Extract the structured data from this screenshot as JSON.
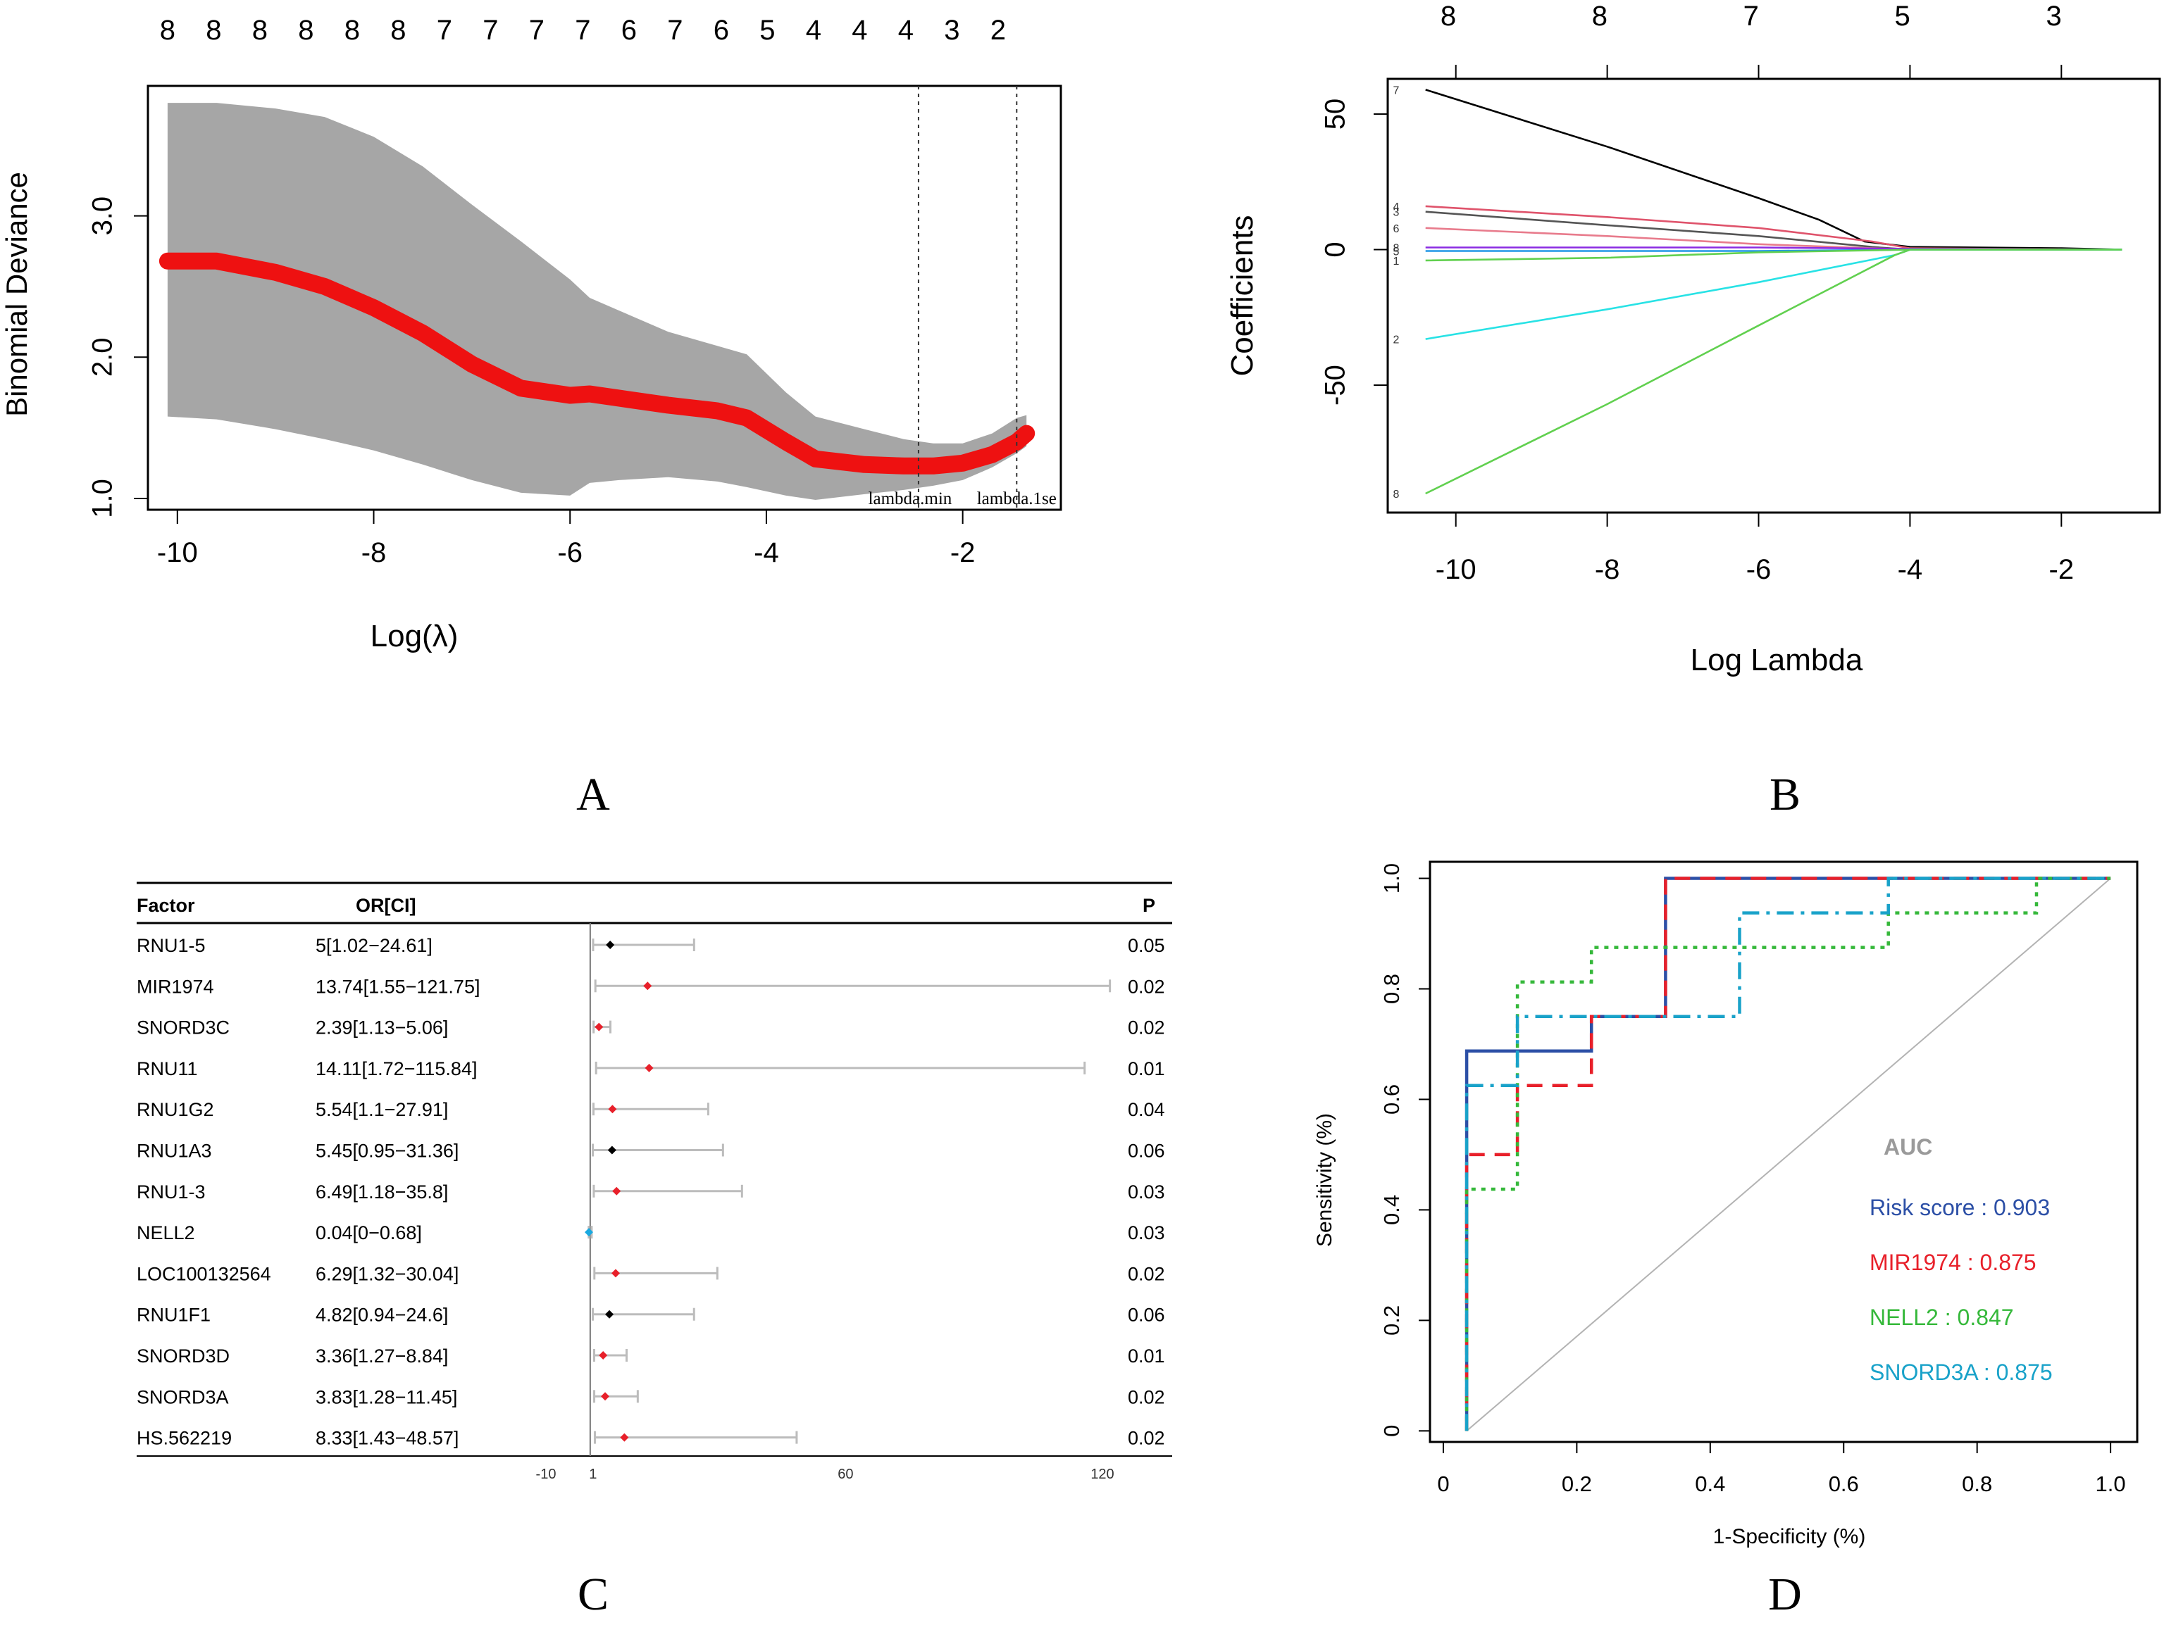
{
  "panel_letters": [
    "A",
    "B",
    "C",
    "D"
  ],
  "chart_data": [
    {
      "panel": "A",
      "type": "line",
      "xlabel": "Log(λ)",
      "ylabel": "Binomial Deviance",
      "xlim": [
        -10.3,
        -1.0
      ],
      "ylim": [
        0.92,
        3.92
      ],
      "xticks": [
        -10,
        -8,
        -6,
        -4,
        -2
      ],
      "yticks": [
        1.0,
        2.0,
        3.0
      ],
      "ytick_labels": [
        "1.0",
        "2.0",
        "3.0"
      ],
      "top_axis_labels": [
        "8",
        "8",
        "8",
        "8",
        "8",
        "8",
        "7",
        "7",
        "7",
        "7",
        "6",
        "7",
        "6",
        "5",
        "4",
        "4",
        "4",
        "3",
        "2"
      ],
      "top_axis_x": [
        -10.1,
        -9.63,
        -9.16,
        -8.69,
        -8.22,
        -7.75,
        -7.28,
        -6.81,
        -6.34,
        -5.87,
        -5.4,
        -4.93,
        -4.46,
        -3.99,
        -3.52,
        -3.05,
        -2.58,
        -2.11,
        -1.64
      ],
      "vlines": [
        {
          "x": -2.45,
          "label": "lambda.min"
        },
        {
          "x": -1.45,
          "label": "lambda.1se"
        }
      ],
      "series": [
        {
          "x": [
            -10.1,
            -9.6,
            -9.0,
            -8.5,
            -8.0,
            -7.5,
            -7.0,
            -6.5,
            -6.0,
            -5.8,
            -5.5,
            -5.0,
            -4.5,
            -4.2,
            -3.8,
            -3.5,
            -3.0,
            -2.6,
            -2.3,
            -2.0,
            -1.7,
            -1.45,
            -1.35
          ],
          "y": [
            2.68,
            2.68,
            2.6,
            2.5,
            2.35,
            2.17,
            1.95,
            1.78,
            1.73,
            1.74,
            1.71,
            1.66,
            1.62,
            1.57,
            1.4,
            1.28,
            1.24,
            1.23,
            1.23,
            1.25,
            1.31,
            1.4,
            1.46
          ],
          "lower": [
            1.58,
            1.56,
            1.49,
            1.42,
            1.34,
            1.24,
            1.13,
            1.04,
            1.02,
            1.11,
            1.13,
            1.15,
            1.12,
            1.08,
            1.02,
            0.99,
            1.03,
            1.06,
            1.09,
            1.13,
            1.22,
            1.32,
            1.37
          ],
          "upper": [
            3.8,
            3.8,
            3.76,
            3.7,
            3.56,
            3.35,
            3.08,
            2.82,
            2.55,
            2.42,
            2.33,
            2.18,
            2.08,
            2.02,
            1.75,
            1.58,
            1.49,
            1.42,
            1.39,
            1.39,
            1.46,
            1.57,
            1.59
          ]
        }
      ]
    },
    {
      "panel": "B",
      "type": "line",
      "xlabel": "Log Lambda",
      "ylabel": "Coefficients",
      "xlim": [
        -10.9,
        -0.7
      ],
      "ylim": [
        -97,
        63
      ],
      "xticks": [
        -10,
        -8,
        -6,
        -4,
        -2
      ],
      "yticks": [
        -50,
        0,
        50
      ],
      "top_axis_labels": [
        "8",
        "8",
        "7",
        "5",
        "3"
      ],
      "top_axis_x": [
        -10.1,
        -8.1,
        -6.1,
        -4.1,
        -2.1
      ],
      "series": [
        {
          "color": "#000000",
          "x": [
            -10.4,
            -8,
            -6,
            -5.2,
            -4.6,
            -4,
            -2,
            -1.2
          ],
          "y": [
            59,
            38,
            19,
            11,
            3,
            1,
            0.5,
            0
          ]
        },
        {
          "color": "#df536b",
          "x": [
            -10.4,
            -8,
            -6,
            -4.5,
            -4,
            -1.2
          ],
          "y": [
            16,
            12,
            8,
            3,
            0.5,
            0
          ]
        },
        {
          "color": "#555555",
          "x": [
            -10.4,
            -8,
            -6,
            -4.5,
            -4,
            -1.2
          ],
          "y": [
            14,
            9,
            5,
            1,
            0,
            0
          ]
        },
        {
          "color": "#e87b8c",
          "x": [
            -10.4,
            -8,
            -6,
            -4.5,
            -4,
            -1.2
          ],
          "y": [
            8,
            5,
            2,
            0.5,
            0,
            0
          ]
        },
        {
          "color": "#2297e6",
          "x": [
            -10.4,
            -6,
            -4,
            -1.2
          ],
          "y": [
            -0.5,
            -0.5,
            0,
            0
          ]
        },
        {
          "color": "#8a2be2",
          "x": [
            -10.4,
            -6,
            -4,
            -1.2
          ],
          "y": [
            0.8,
            0.8,
            0.3,
            0
          ]
        },
        {
          "color": "#61d04f",
          "x": [
            -10.4,
            -8,
            -6,
            -4,
            -1.2
          ],
          "y": [
            -4,
            -3,
            -1,
            0,
            0
          ]
        },
        {
          "color": "#28e2e5",
          "x": [
            -10.4,
            -8,
            -6,
            -4.2,
            -4,
            -1.2
          ],
          "y": [
            -33,
            -22,
            -12,
            -2,
            0,
            0
          ]
        },
        {
          "color": "#61d04f",
          "x": [
            -10.4,
            -8,
            -6,
            -4.2,
            -4,
            -1.2
          ],
          "y": [
            -90,
            -57,
            -28,
            -2,
            0,
            0
          ]
        }
      ],
      "left_labels": [
        "7",
        "4",
        "3",
        "6",
        "5",
        "8",
        "1",
        "2",
        "8"
      ]
    },
    {
      "panel": "C",
      "type": "table",
      "columns": [
        "Factor",
        "OR[CI]",
        "P"
      ],
      "rows": [
        {
          "factor": "RNU1-5",
          "or_ci": "5[1.02−24.61]",
          "p": "0.05",
          "or": 5,
          "lo": 1.02,
          "hi": 24.61,
          "color": "#000000"
        },
        {
          "factor": "MIR1974",
          "or_ci": "13.74[1.55−121.75]",
          "p": "0.02",
          "or": 13.74,
          "lo": 1.55,
          "hi": 121.75,
          "color": "#e8202a"
        },
        {
          "factor": "SNORD3C",
          "or_ci": "2.39[1.13−5.06]",
          "p": "0.02",
          "or": 2.39,
          "lo": 1.13,
          "hi": 5.06,
          "color": "#e8202a"
        },
        {
          "factor": "RNU11",
          "or_ci": "14.11[1.72−115.84]",
          "p": "0.01",
          "or": 14.11,
          "lo": 1.72,
          "hi": 115.84,
          "color": "#e8202a"
        },
        {
          "factor": "RNU1G2",
          "or_ci": "5.54[1.1−27.91]",
          "p": "0.04",
          "or": 5.54,
          "lo": 1.1,
          "hi": 27.91,
          "color": "#e8202a"
        },
        {
          "factor": "RNU1A3",
          "or_ci": "5.45[0.95−31.36]",
          "p": "0.06",
          "or": 5.45,
          "lo": 0.95,
          "hi": 31.36,
          "color": "#000000"
        },
        {
          "factor": "RNU1-3",
          "or_ci": "6.49[1.18−35.8]",
          "p": "0.03",
          "or": 6.49,
          "lo": 1.18,
          "hi": 35.8,
          "color": "#e8202a"
        },
        {
          "factor": "NELL2",
          "or_ci": "0.04[0−0.68]",
          "p": "0.03",
          "or": 0.04,
          "lo": 0,
          "hi": 0.68,
          "color": "#1aa9e0"
        },
        {
          "factor": "LOC100132564",
          "or_ci": "6.29[1.32−30.04]",
          "p": "0.02",
          "or": 6.29,
          "lo": 1.32,
          "hi": 30.04,
          "color": "#e8202a"
        },
        {
          "factor": "RNU1F1",
          "or_ci": "4.82[0.94−24.6]",
          "p": "0.06",
          "or": 4.82,
          "lo": 0.94,
          "hi": 24.6,
          "color": "#000000"
        },
        {
          "factor": "SNORD3D",
          "or_ci": "3.36[1.27−8.84]",
          "p": "0.01",
          "or": 3.36,
          "lo": 1.27,
          "hi": 8.84,
          "color": "#e8202a"
        },
        {
          "factor": "SNORD3A",
          "or_ci": "3.83[1.28−11.45]",
          "p": "0.02",
          "or": 3.83,
          "lo": 1.28,
          "hi": 11.45,
          "color": "#e8202a"
        },
        {
          "factor": "HS.562219",
          "or_ci": "8.33[1.43−48.57]",
          "p": "0.02",
          "or": 8.33,
          "lo": 1.43,
          "hi": 48.57,
          "color": "#e8202a"
        }
      ],
      "xaxis_ticks": [
        -10,
        1,
        60,
        120
      ],
      "xlim": [
        -10,
        120
      ]
    },
    {
      "panel": "D",
      "type": "line",
      "xlabel": "1-Specificity (%)",
      "ylabel": "Sensitivity (%)",
      "xlim": [
        -0.02,
        1.04
      ],
      "ylim": [
        -0.02,
        1.03
      ],
      "xticks": [
        0,
        0.2,
        0.4,
        0.6,
        0.8,
        1.0
      ],
      "xtick_labels": [
        "0",
        "0.2",
        "0.4",
        "0.6",
        "0.8",
        "1.0"
      ],
      "yticks": [
        0,
        0.2,
        0.4,
        0.6,
        0.8,
        1.0
      ],
      "ytick_labels": [
        "0",
        "0.2",
        "0.4",
        "0.6",
        "0.8",
        "1.0"
      ],
      "legend_title": "AUC",
      "legend_position": "bottom-right",
      "series": [
        {
          "name": "Risk score : 0.903",
          "color": "#2c4fa6",
          "dash": "solid",
          "x": [
            0.035,
            0.035,
            0.222,
            0.222,
            0.333,
            0.333,
            1.0
          ],
          "y": [
            0.0,
            0.6875,
            0.6875,
            0.75,
            0.75,
            1.0,
            1.0
          ]
        },
        {
          "name": "MIR1974 : 0.875",
          "color": "#e8202a",
          "dash": "dash",
          "x": [
            0.035,
            0.035,
            0.111,
            0.111,
            0.222,
            0.222,
            0.333,
            0.333,
            1.0
          ],
          "y": [
            0.0,
            0.5,
            0.5,
            0.625,
            0.625,
            0.75,
            0.75,
            1.0,
            1.0
          ]
        },
        {
          "name": "NELL2 : 0.847",
          "color": "#35b83a",
          "dash": "dot",
          "x": [
            0.035,
            0.035,
            0.111,
            0.111,
            0.222,
            0.222,
            0.667,
            0.667,
            0.889,
            0.889,
            1.0
          ],
          "y": [
            0.0,
            0.4375,
            0.4375,
            0.8125,
            0.8125,
            0.875,
            0.875,
            0.9375,
            0.9375,
            1.0,
            1.0
          ]
        },
        {
          "name": "SNORD3A : 0.875",
          "color": "#19a2c9",
          "dash": "dashdot",
          "x": [
            0.035,
            0.035,
            0.111,
            0.111,
            0.444,
            0.444,
            0.667,
            0.667,
            1.0
          ],
          "y": [
            0.0,
            0.625,
            0.625,
            0.75,
            0.75,
            0.9375,
            0.9375,
            1.0,
            1.0
          ]
        }
      ],
      "diagonal": true
    }
  ]
}
